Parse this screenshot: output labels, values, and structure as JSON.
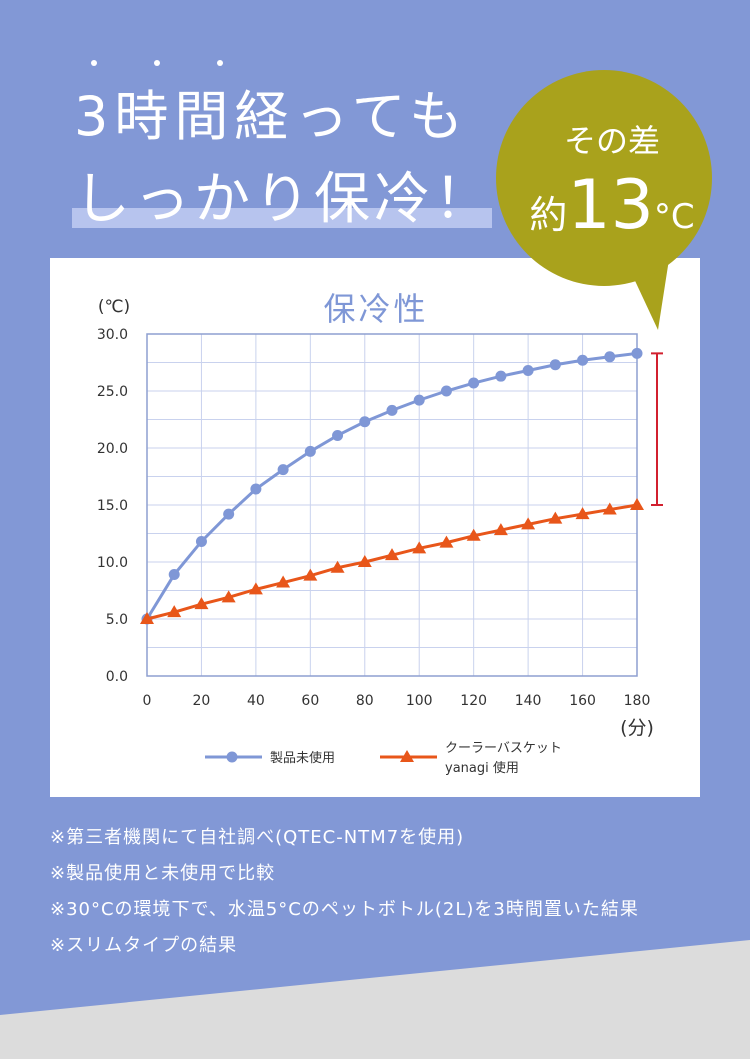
{
  "headline": {
    "line1": "3時間経っても",
    "line2": "しっかり保冷！"
  },
  "callout": {
    "line1": "その差",
    "prefix": "約",
    "number": "13",
    "unit": "°C"
  },
  "chart_data": {
    "type": "line",
    "title": "保冷性",
    "y_label": "(℃)",
    "x_label": "(分)",
    "x": [
      0,
      10,
      20,
      30,
      40,
      50,
      60,
      70,
      80,
      90,
      100,
      110,
      120,
      130,
      140,
      150,
      160,
      170,
      180
    ],
    "series": [
      {
        "name": "製品未使用",
        "color": "#7f97d6",
        "marker": "circle",
        "values": [
          5.0,
          8.9,
          11.8,
          14.2,
          16.4,
          18.1,
          19.7,
          21.1,
          22.3,
          23.3,
          24.2,
          25.0,
          25.7,
          26.3,
          26.8,
          27.3,
          27.7,
          28.0,
          28.3
        ]
      },
      {
        "name": "クーラーバスケット\nyanagi 使用",
        "color": "#e8561a",
        "marker": "triangle",
        "values": [
          5.0,
          5.6,
          6.3,
          6.9,
          7.6,
          8.2,
          8.8,
          9.5,
          10.0,
          10.6,
          11.2,
          11.7,
          12.3,
          12.8,
          13.3,
          13.8,
          14.2,
          14.6,
          15.0
        ]
      }
    ],
    "xlim": [
      0,
      180
    ],
    "xticks": [
      0,
      20,
      40,
      60,
      80,
      100,
      120,
      140,
      160,
      180
    ],
    "ylim": [
      0,
      30
    ],
    "yticks": [
      {
        "value": 0,
        "label": "0.0"
      },
      {
        "value": 5,
        "label": "5.0"
      },
      {
        "value": 10,
        "label": "10.0"
      },
      {
        "value": 15,
        "label": "15.0"
      },
      {
        "value": 20,
        "label": "20.0"
      },
      {
        "value": 25,
        "label": "25.0"
      },
      {
        "value": 30,
        "label": "30.0"
      }
    ],
    "y_minor_ticks": [
      2.5,
      7.5,
      12.5,
      17.5,
      22.5,
      27.5
    ],
    "grid": true,
    "difference_marker_color": "#d2202f"
  },
  "notes": [
    "※第三者機関にて自社調べ(QTEC-NTM7を使用)",
    "※製品使用と未使用で比較",
    "※30°Cの環境下で、水温5°Cのペットボトル(2L)を3時間置いた結果",
    "※スリムタイプの結果"
  ]
}
